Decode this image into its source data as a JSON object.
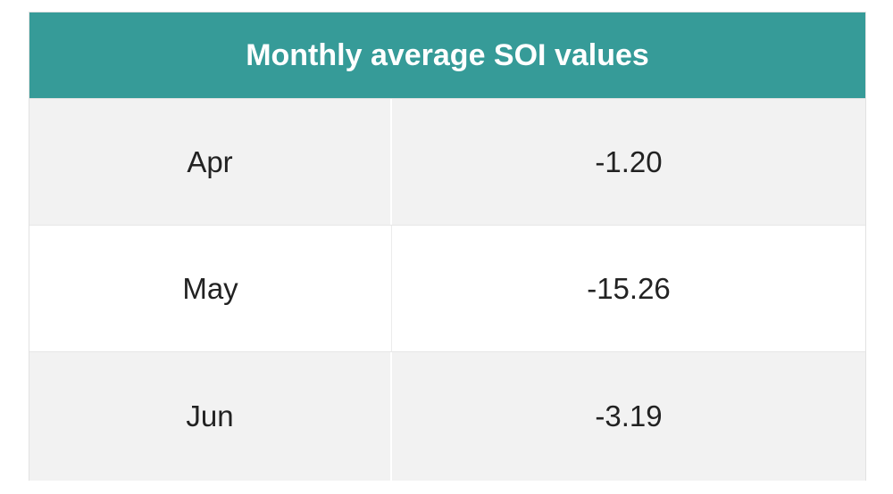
{
  "table": {
    "title": "Monthly average SOI values",
    "header_color": "#369b98",
    "rows": [
      {
        "month": "Apr",
        "value": "-1.20"
      },
      {
        "month": "May",
        "value": "-15.26"
      },
      {
        "month": "Jun",
        "value": "-3.19"
      }
    ]
  }
}
